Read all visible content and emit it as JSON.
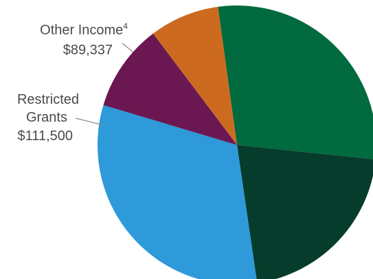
{
  "chart_data": {
    "type": "pie",
    "slices": [
      {
        "label": "Other Income",
        "superscript": "4",
        "value_label": "$89,337",
        "value": 89337,
        "color": "#cc6b1f"
      },
      {
        "label": "",
        "value_label": "",
        "value": 318000,
        "color": "#016a3e"
      },
      {
        "label": "",
        "value_label": "",
        "value": 232000,
        "color": "#063c2c"
      },
      {
        "label": "",
        "value_label": "",
        "value": 352000,
        "color": "#2e9ad9"
      },
      {
        "label": "Restricted Grants",
        "label_lines": [
          "Restricted",
          "Grants"
        ],
        "value_label": "$111,500",
        "value": 111500,
        "color": "#6b1852"
      }
    ]
  }
}
